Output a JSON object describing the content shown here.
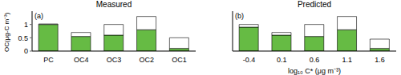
{
  "chart_data": [
    {
      "type": "bar",
      "title": "Measured",
      "annotation": "(a)",
      "y_label": "OC(μg-C m⁻³)",
      "stacked": true,
      "categories": [
        "PC",
        "OC4",
        "OC3",
        "OC2",
        "OC1"
      ],
      "series": [
        {
          "color": "#66bb44",
          "values": [
            1.0,
            0.55,
            0.6,
            0.8,
            0.1
          ]
        },
        {
          "color": "#ffffff",
          "values": [
            0.02,
            0.15,
            0.4,
            0.5,
            0.4
          ]
        }
      ],
      "ylim": [
        0,
        1.5
      ],
      "yticks": [
        0,
        0.5,
        1
      ]
    },
    {
      "type": "bar",
      "title": "Predicted",
      "annotation": "(b)",
      "x_label": "log₁₀ C* (μg m⁻³)",
      "stacked": true,
      "tick_labels": "x",
      "categories": [
        "-0.4",
        "0.1",
        "0.6",
        "1.1",
        "1.6"
      ],
      "series": [
        {
          "color": "#66bb44",
          "values": [
            0.9,
            0.6,
            0.55,
            0.8,
            0.1
          ]
        },
        {
          "color": "#ffffff",
          "values": [
            0.1,
            0.1,
            0.45,
            0.5,
            0.35
          ]
        }
      ],
      "ylim": [
        0,
        1.5
      ],
      "yticks": [
        0,
        0.5,
        1
      ]
    }
  ]
}
